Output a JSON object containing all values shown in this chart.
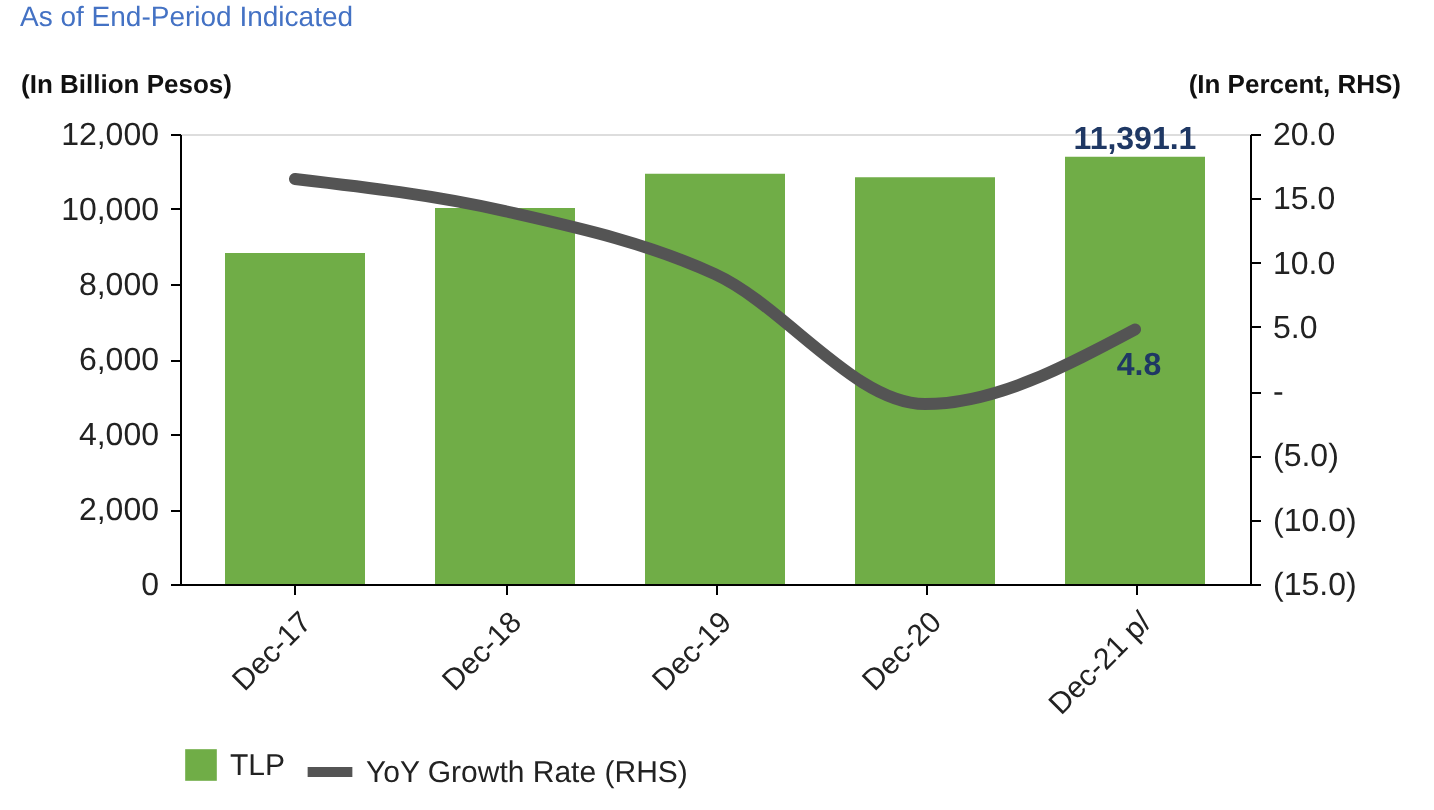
{
  "chart_data": {
    "type": "bar",
    "title": "As of End-Period Indicated",
    "ylabel": "(In Billion Pesos)",
    "y2label": "(In Percent, RHS)",
    "categories": [
      "Dec-17",
      "Dec-18",
      "Dec-19",
      "Dec-20",
      "Dec-21 p/"
    ],
    "series": [
      {
        "name": "TLP",
        "color": "#70ad47",
        "values": [
          8830,
          10030,
          10940,
          10850,
          11391.1
        ],
        "value_labels": [
          null,
          null,
          null,
          null,
          "11,391.1"
        ]
      },
      {
        "name": "YoY Growth Rate (RHS)",
        "type": "line",
        "axis": "y2",
        "color": "#545454",
        "values": [
          16.5,
          14.0,
          9.1,
          -1.0,
          4.8
        ],
        "value_labels": [
          null,
          null,
          null,
          null,
          "4.8"
        ]
      }
    ],
    "ylim": [
      0,
      12000
    ],
    "yticks": [
      {
        "value": 0,
        "label": "0"
      },
      {
        "value": 2000,
        "label": "2,000"
      },
      {
        "value": 4000,
        "label": "4,000"
      },
      {
        "value": 6000,
        "label": "6,000"
      },
      {
        "value": 8000,
        "label": "8,000"
      },
      {
        "value": 10000,
        "label": "10,000"
      },
      {
        "value": 12000,
        "label": "12,000"
      }
    ],
    "y2lim": [
      -15,
      20
    ],
    "y2ticks": [
      {
        "value": -15,
        "label": "(15.0)"
      },
      {
        "value": -10,
        "label": "(10.0)"
      },
      {
        "value": -5,
        "label": "(5.0)"
      },
      {
        "value": 0,
        "label": "-"
      },
      {
        "value": 5,
        "label": "5.0"
      },
      {
        "value": 10,
        "label": "10.0"
      },
      {
        "value": 15,
        "label": "15.0"
      },
      {
        "value": 20,
        "label": "20.0"
      }
    ],
    "legend": "bottom",
    "grid": false,
    "marker": "none",
    "line_style": "solid"
  }
}
